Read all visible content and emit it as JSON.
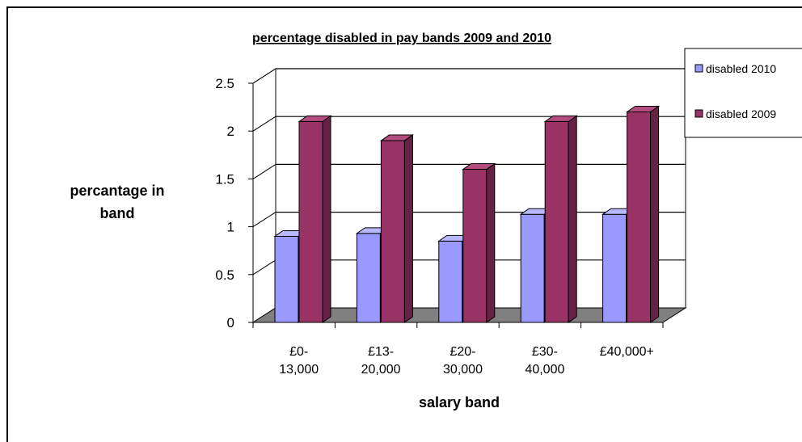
{
  "chart_data": {
    "type": "bar",
    "title": "percentage disabled in pay bands 2009 and 2010",
    "xlabel": "salary band",
    "ylabel": [
      "percantage in",
      "band"
    ],
    "categories": [
      [
        "£0-",
        "13,000"
      ],
      [
        "£13-",
        "20,000"
      ],
      [
        "£20-",
        "30,000"
      ],
      [
        "£30-",
        "40,000"
      ],
      [
        "£40,000+"
      ]
    ],
    "series": [
      {
        "name": "disabled 2010",
        "values": [
          0.9,
          0.93,
          0.85,
          1.13,
          1.13
        ],
        "color": "#9999ff",
        "side": "#6666b3",
        "top": "#b8b8ff"
      },
      {
        "name": "disabled 2009",
        "values": [
          2.1,
          1.9,
          1.6,
          2.1,
          2.2
        ],
        "color": "#993366",
        "side": "#662244",
        "top": "#b34d80"
      }
    ],
    "ylim": [
      0,
      2.5
    ],
    "yticks": [
      "0",
      "0.5",
      "1",
      "1.5",
      "2",
      "2.5"
    ],
    "grid": true,
    "legend_position": "right",
    "floor_color": "#808080"
  }
}
